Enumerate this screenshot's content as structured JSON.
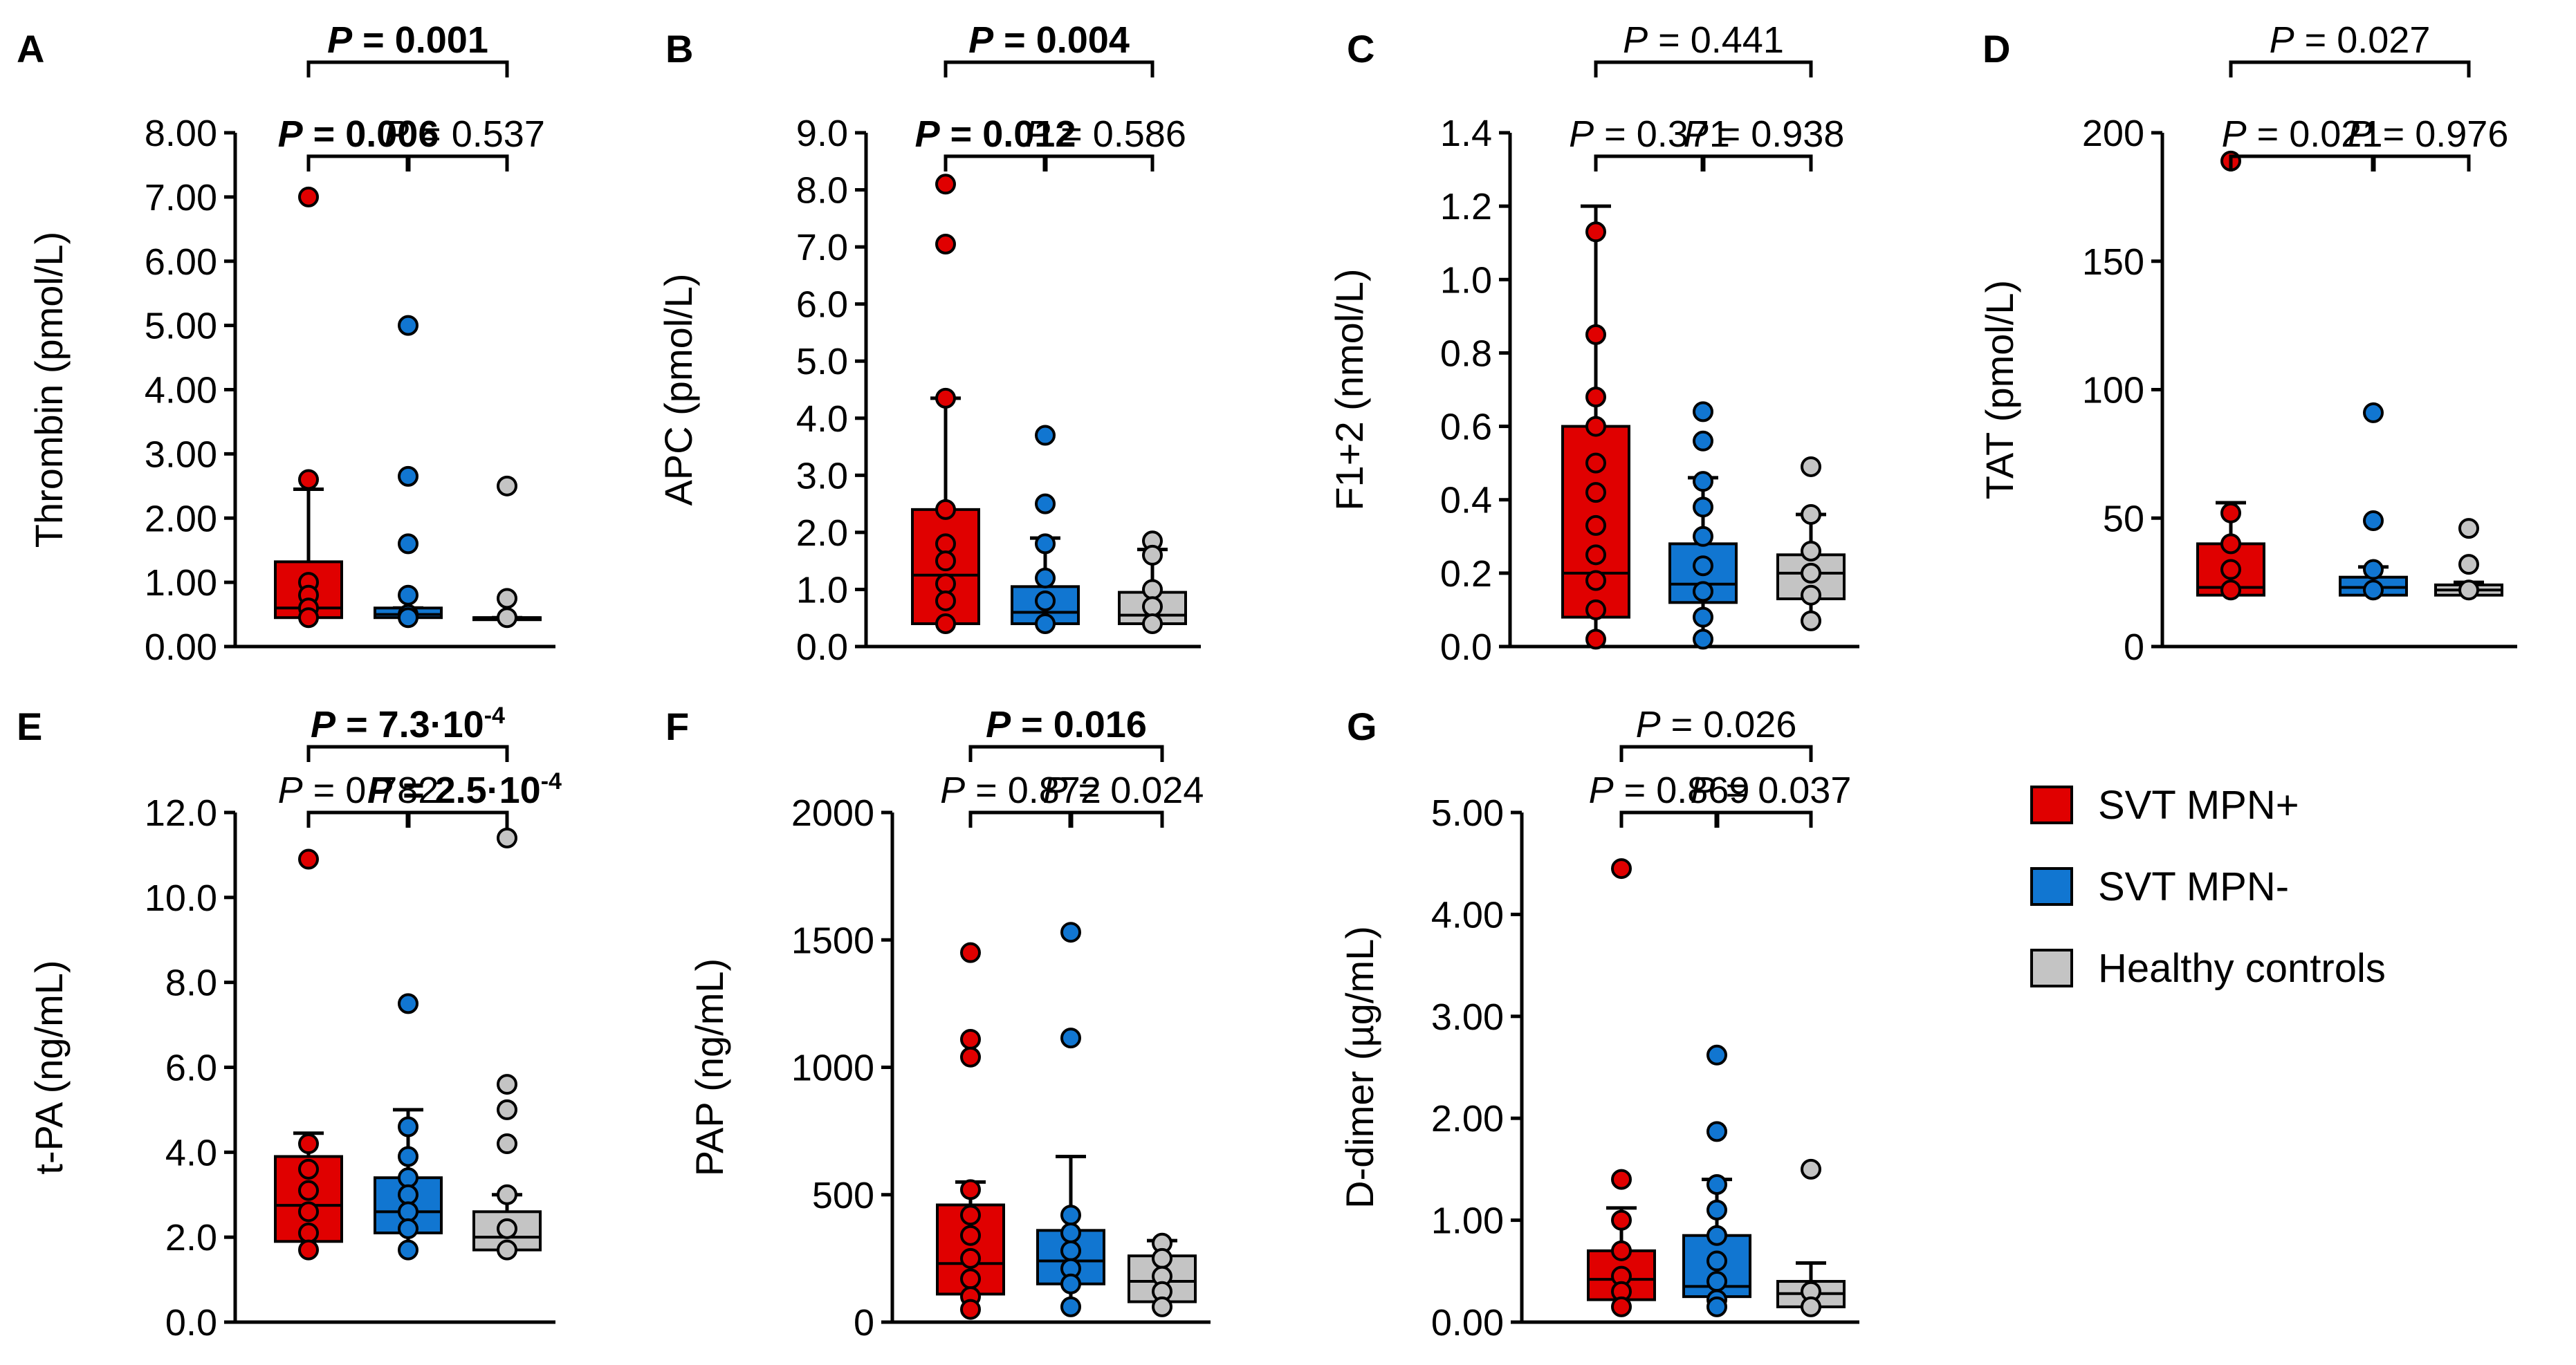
{
  "colors": {
    "mpn_pos": "#e00000",
    "mpn_neg": "#1176d1",
    "control": "#c4c4c4",
    "axis": "#000000"
  },
  "legend": {
    "items": [
      {
        "label": "SVT MPN+",
        "color": "#e00000"
      },
      {
        "label": "SVT MPN-",
        "color": "#1176d1"
      },
      {
        "label": "Healthy controls",
        "color": "#c4c4c4"
      }
    ]
  },
  "chart_data": [
    {
      "panel": "A",
      "type": "box",
      "ylabel": "Thrombin (pmol/L)",
      "ylim": [
        0,
        8
      ],
      "yticks": [
        "0.00",
        "1.00",
        "2.00",
        "3.00",
        "4.00",
        "5.00",
        "6.00",
        "7.00",
        "8.00"
      ],
      "categories": [
        "SVT MPN+",
        "SVT MPN-",
        "Healthy controls"
      ],
      "series": [
        {
          "name": "SVT MPN+",
          "q1": 0.45,
          "median": 0.6,
          "q3": 1.32,
          "whisker_low": 0.45,
          "whisker_high": 2.45,
          "points": [
            7.0,
            2.6,
            1.0,
            0.8,
            0.6,
            0.45
          ]
        },
        {
          "name": "SVT MPN-",
          "q1": 0.45,
          "median": 0.5,
          "q3": 0.6,
          "whisker_low": 0.45,
          "whisker_high": 0.6,
          "points": [
            5.0,
            2.65,
            1.6,
            0.8,
            0.5,
            0.45
          ]
        },
        {
          "name": "Healthy controls",
          "q1": 0.45,
          "median": 0.45,
          "q3": 0.45,
          "whisker_low": 0.45,
          "whisker_high": 0.45,
          "points": [
            2.5,
            0.75,
            0.45
          ]
        }
      ],
      "pvalues": {
        "top": {
          "text": "P = 0.001",
          "bold": true
        },
        "left": {
          "text": "P = 0.006",
          "bold": true
        },
        "right": {
          "text": "P = 0.537",
          "bold": false
        }
      }
    },
    {
      "panel": "B",
      "type": "box",
      "ylabel": "APC (pmol/L)",
      "ylim": [
        0,
        9
      ],
      "yticks": [
        "0.0",
        "1.0",
        "2.0",
        "3.0",
        "4.0",
        "5.0",
        "6.0",
        "7.0",
        "8.0",
        "9.0"
      ],
      "categories": [
        "SVT MPN+",
        "SVT MPN-",
        "Healthy controls"
      ],
      "series": [
        {
          "name": "SVT MPN+",
          "q1": 0.4,
          "median": 1.25,
          "q3": 2.4,
          "whisker_low": 0.4,
          "whisker_high": 4.35,
          "points": [
            8.1,
            7.05,
            4.35,
            2.4,
            1.8,
            1.5,
            1.1,
            0.8,
            0.4
          ]
        },
        {
          "name": "SVT MPN-",
          "q1": 0.4,
          "median": 0.6,
          "q3": 1.05,
          "whisker_low": 0.4,
          "whisker_high": 1.9,
          "points": [
            3.7,
            2.5,
            1.8,
            1.2,
            0.8,
            0.4
          ]
        },
        {
          "name": "Healthy controls",
          "q1": 0.4,
          "median": 0.55,
          "q3": 0.95,
          "whisker_low": 0.4,
          "whisker_high": 1.7,
          "points": [
            1.85,
            1.6,
            1.0,
            0.7,
            0.4
          ]
        }
      ],
      "pvalues": {
        "top": {
          "text": "P = 0.004",
          "bold": true
        },
        "left": {
          "text": "P = 0.012",
          "bold": true
        },
        "right": {
          "text": "P = 0.586",
          "bold": false
        }
      }
    },
    {
      "panel": "C",
      "type": "box",
      "ylabel": "F1+2 (nmol/L)",
      "ylim": [
        0,
        1.4
      ],
      "yticks": [
        "0.0",
        "0.2",
        "0.4",
        "0.6",
        "0.8",
        "1.0",
        "1.2",
        "1.4"
      ],
      "categories": [
        "SVT MPN+",
        "SVT MPN-",
        "Healthy controls"
      ],
      "series": [
        {
          "name": "SVT MPN+",
          "q1": 0.08,
          "median": 0.2,
          "q3": 0.6,
          "whisker_low": 0.02,
          "whisker_high": 1.2,
          "points": [
            1.13,
            0.85,
            0.68,
            0.6,
            0.5,
            0.42,
            0.33,
            0.25,
            0.18,
            0.1,
            0.02
          ]
        },
        {
          "name": "SVT MPN-",
          "q1": 0.12,
          "median": 0.17,
          "q3": 0.28,
          "whisker_low": 0.02,
          "whisker_high": 0.46,
          "points": [
            0.64,
            0.56,
            0.45,
            0.38,
            0.3,
            0.22,
            0.15,
            0.08,
            0.02
          ]
        },
        {
          "name": "Healthy controls",
          "q1": 0.13,
          "median": 0.2,
          "q3": 0.25,
          "whisker_low": 0.07,
          "whisker_high": 0.36,
          "points": [
            0.49,
            0.36,
            0.26,
            0.2,
            0.14,
            0.07
          ]
        }
      ],
      "pvalues": {
        "top": {
          "text": "P = 0.441",
          "bold": false
        },
        "left": {
          "text": "P = 0.371",
          "bold": false
        },
        "right": {
          "text": "P = 0.938",
          "bold": false
        }
      }
    },
    {
      "panel": "D",
      "type": "box",
      "ylabel": "TAT (pmol/L)",
      "ylim": [
        0,
        200
      ],
      "yticks": [
        "0",
        "50",
        "100",
        "150",
        "200"
      ],
      "categories": [
        "SVT MPN+",
        "SVT MPN-",
        "Healthy controls"
      ],
      "series": [
        {
          "name": "SVT MPN+",
          "q1": 20,
          "median": 23,
          "q3": 40,
          "whisker_low": 20,
          "whisker_high": 56,
          "points": [
            189,
            52,
            40,
            30,
            22
          ]
        },
        {
          "name": "SVT MPN-",
          "q1": 20,
          "median": 23,
          "q3": 27,
          "whisker_low": 20,
          "whisker_high": 31,
          "points": [
            91,
            49,
            30,
            22
          ]
        },
        {
          "name": "Healthy controls",
          "q1": 20,
          "median": 22,
          "q3": 24,
          "whisker_low": 20,
          "whisker_high": 25,
          "points": [
            46,
            32,
            22
          ]
        }
      ],
      "pvalues": {
        "top": {
          "text": "P = 0.027",
          "bold": false
        },
        "left": {
          "text": "P = 0.021",
          "bold": false
        },
        "right": {
          "text": "P = 0.976",
          "bold": false
        }
      }
    },
    {
      "panel": "E",
      "type": "box",
      "ylabel": "t-PA (ng/mL)",
      "ylim": [
        0,
        12
      ],
      "yticks": [
        "0.0",
        "2.0",
        "4.0",
        "6.0",
        "8.0",
        "10.0",
        "12.0"
      ],
      "categories": [
        "SVT MPN+",
        "SVT MPN-",
        "Healthy controls"
      ],
      "series": [
        {
          "name": "SVT MPN+",
          "q1": 1.9,
          "median": 2.75,
          "q3": 3.9,
          "whisker_low": 1.7,
          "whisker_high": 4.45,
          "points": [
            10.9,
            4.2,
            3.6,
            3.1,
            2.6,
            2.1,
            1.7
          ]
        },
        {
          "name": "SVT MPN-",
          "q1": 2.1,
          "median": 2.6,
          "q3": 3.4,
          "whisker_low": 1.7,
          "whisker_high": 5.0,
          "points": [
            7.5,
            4.6,
            3.9,
            3.4,
            3.0,
            2.6,
            2.2,
            1.7
          ]
        },
        {
          "name": "Healthy controls",
          "q1": 1.7,
          "median": 2.0,
          "q3": 2.6,
          "whisker_low": 1.7,
          "whisker_high": 3.0,
          "points": [
            11.4,
            5.6,
            5.0,
            4.2,
            3.0,
            2.2,
            1.7
          ]
        }
      ],
      "pvalues": {
        "top": {
          "text": "P = 7.3·10",
          "exp": "-4",
          "bold": true
        },
        "left": {
          "text": "P = 0.782",
          "bold": false
        },
        "right": {
          "text": "P = 2.5·10",
          "exp": "-4",
          "bold": true
        }
      }
    },
    {
      "panel": "F",
      "type": "box",
      "ylabel": "PAP (ng/mL)",
      "ylim": [
        0,
        2000
      ],
      "yticks": [
        "0",
        "500",
        "1000",
        "1500",
        "2000"
      ],
      "categories": [
        "SVT MPN+",
        "SVT MPN-",
        "Healthy controls"
      ],
      "series": [
        {
          "name": "SVT MPN+",
          "q1": 110,
          "median": 230,
          "q3": 460,
          "whisker_low": 50,
          "whisker_high": 550,
          "points": [
            1450,
            1110,
            1040,
            520,
            420,
            340,
            250,
            170,
            100,
            50
          ]
        },
        {
          "name": "SVT MPN-",
          "q1": 150,
          "median": 240,
          "q3": 360,
          "whisker_low": 60,
          "whisker_high": 650,
          "points": [
            1530,
            1115,
            420,
            350,
            280,
            210,
            150,
            60
          ]
        },
        {
          "name": "Healthy controls",
          "q1": 80,
          "median": 160,
          "q3": 260,
          "whisker_low": 40,
          "whisker_high": 320,
          "points": [
            310,
            250,
            180,
            120,
            60
          ]
        }
      ],
      "pvalues": {
        "top": {
          "text": "P = 0.016",
          "bold": true
        },
        "left": {
          "text": "P = 0.872",
          "bold": false
        },
        "right": {
          "text": "P = 0.024",
          "bold": false
        }
      }
    },
    {
      "panel": "G",
      "type": "box",
      "ylabel": "D-dimer (µg/mL)",
      "ylim": [
        0,
        5
      ],
      "yticks": [
        "0.00",
        "1.00",
        "2.00",
        "3.00",
        "4.00",
        "5.00"
      ],
      "categories": [
        "SVT MPN+",
        "SVT MPN-",
        "Healthy controls"
      ],
      "series": [
        {
          "name": "SVT MPN+",
          "q1": 0.22,
          "median": 0.42,
          "q3": 0.7,
          "whisker_low": 0.15,
          "whisker_high": 1.12,
          "points": [
            4.45,
            1.4,
            1.0,
            0.7,
            0.45,
            0.3,
            0.15
          ]
        },
        {
          "name": "SVT MPN-",
          "q1": 0.25,
          "median": 0.35,
          "q3": 0.85,
          "whisker_low": 0.15,
          "whisker_high": 1.4,
          "points": [
            2.62,
            1.87,
            1.35,
            1.1,
            0.85,
            0.6,
            0.4,
            0.22,
            0.15
          ]
        },
        {
          "name": "Healthy controls",
          "q1": 0.15,
          "median": 0.28,
          "q3": 0.4,
          "whisker_low": 0.15,
          "whisker_high": 0.58,
          "points": [
            1.5,
            0.3,
            0.15
          ]
        }
      ],
      "pvalues": {
        "top": {
          "text": "P = 0.026",
          "bold": false
        },
        "left": {
          "text": "P = 0.869",
          "bold": false
        },
        "right": {
          "text": "P = 0.037",
          "bold": false
        }
      }
    }
  ]
}
